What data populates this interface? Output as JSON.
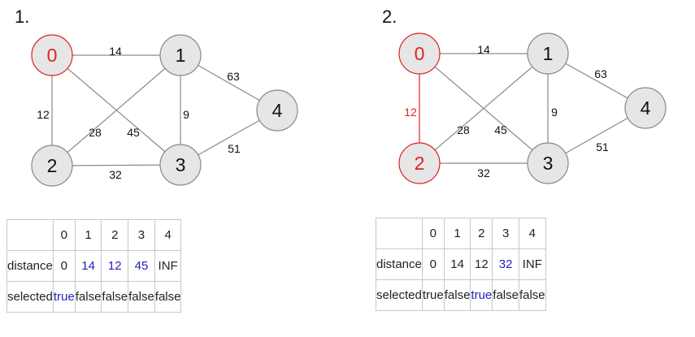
{
  "colors": {
    "edge": "#8a8a8a",
    "node_fill": "#e6e6e6",
    "node_stroke": "#888888",
    "highlight": "#dd2222",
    "blue": "#2222bb",
    "text": "#111111"
  },
  "panels": [
    {
      "label": "1.",
      "nodes": [
        {
          "id": "0",
          "highlight": true
        },
        {
          "id": "1",
          "highlight": false
        },
        {
          "id": "2",
          "highlight": false
        },
        {
          "id": "3",
          "highlight": false
        },
        {
          "id": "4",
          "highlight": false
        }
      ],
      "edges": [
        {
          "from": "0",
          "to": "1",
          "weight": "14",
          "highlight": false
        },
        {
          "from": "0",
          "to": "2",
          "weight": "12",
          "highlight": false
        },
        {
          "from": "0",
          "to": "3",
          "weight": "45",
          "highlight": false
        },
        {
          "from": "1",
          "to": "2",
          "weight": "28",
          "highlight": false
        },
        {
          "from": "1",
          "to": "3",
          "weight": "9",
          "highlight": false
        },
        {
          "from": "1",
          "to": "4",
          "weight": "63",
          "highlight": false
        },
        {
          "from": "2",
          "to": "3",
          "weight": "32",
          "highlight": false
        },
        {
          "from": "3",
          "to": "4",
          "weight": "51",
          "highlight": false
        }
      ],
      "table": {
        "header": [
          "",
          "0",
          "1",
          "2",
          "3",
          "4"
        ],
        "rows": [
          {
            "label": "distance",
            "cells": [
              {
                "v": "0",
                "blue": false
              },
              {
                "v": "14",
                "blue": true
              },
              {
                "v": "12",
                "blue": true
              },
              {
                "v": "45",
                "blue": true
              },
              {
                "v": "INF",
                "blue": false
              }
            ]
          },
          {
            "label": "selected",
            "cells": [
              {
                "v": "true",
                "blue": true
              },
              {
                "v": "false",
                "blue": false
              },
              {
                "v": "false",
                "blue": false
              },
              {
                "v": "false",
                "blue": false
              },
              {
                "v": "false",
                "blue": false
              }
            ]
          }
        ]
      }
    },
    {
      "label": "2.",
      "nodes": [
        {
          "id": "0",
          "highlight": true
        },
        {
          "id": "1",
          "highlight": false
        },
        {
          "id": "2",
          "highlight": true
        },
        {
          "id": "3",
          "highlight": false
        },
        {
          "id": "4",
          "highlight": false
        }
      ],
      "edges": [
        {
          "from": "0",
          "to": "1",
          "weight": "14",
          "highlight": false
        },
        {
          "from": "0",
          "to": "2",
          "weight": "12",
          "highlight": true
        },
        {
          "from": "0",
          "to": "3",
          "weight": "45",
          "highlight": false
        },
        {
          "from": "1",
          "to": "2",
          "weight": "28",
          "highlight": false
        },
        {
          "from": "1",
          "to": "3",
          "weight": "9",
          "highlight": false
        },
        {
          "from": "1",
          "to": "4",
          "weight": "63",
          "highlight": false
        },
        {
          "from": "2",
          "to": "3",
          "weight": "32",
          "highlight": false
        },
        {
          "from": "3",
          "to": "4",
          "weight": "51",
          "highlight": false
        }
      ],
      "table": {
        "header": [
          "",
          "0",
          "1",
          "2",
          "3",
          "4"
        ],
        "rows": [
          {
            "label": "distance",
            "cells": [
              {
                "v": "0",
                "blue": false
              },
              {
                "v": "14",
                "blue": false
              },
              {
                "v": "12",
                "blue": false
              },
              {
                "v": "32",
                "blue": true
              },
              {
                "v": "INF",
                "blue": false
              }
            ]
          },
          {
            "label": "selected",
            "cells": [
              {
                "v": "true",
                "blue": false
              },
              {
                "v": "false",
                "blue": false
              },
              {
                "v": "true",
                "blue": true
              },
              {
                "v": "false",
                "blue": false
              },
              {
                "v": "false",
                "blue": false
              }
            ]
          }
        ]
      }
    }
  ]
}
